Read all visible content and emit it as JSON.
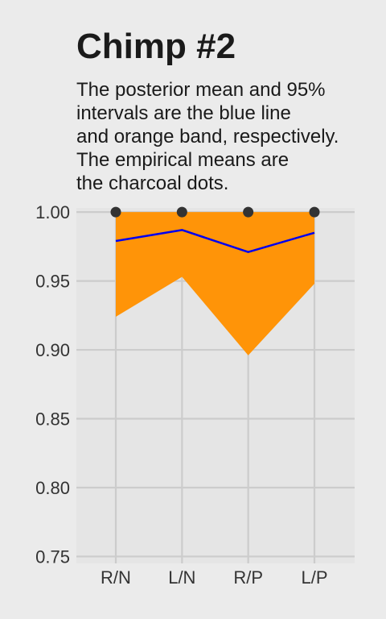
{
  "title": "Chimp #2",
  "subtitle_lines": [
    "The posterior mean and 95%",
    "intervals are the blue line",
    "and orange band, respectively.",
    "The empirical means are",
    "the charcoal dots."
  ],
  "colors": {
    "background": "#ebebeb",
    "panel": "#e5e5e5",
    "grid": "#cccccc",
    "band": "#ff9408",
    "mean_line": "#0000ee",
    "dots": "#333333"
  },
  "chart_data": {
    "type": "line",
    "title": "Chimp #2",
    "categories": [
      "R/N",
      "L/N",
      "R/P",
      "L/P"
    ],
    "series": [
      {
        "name": "posterior mean",
        "values": [
          0.979,
          0.987,
          0.971,
          0.985
        ]
      },
      {
        "name": "95% interval lower",
        "values": [
          0.924,
          0.953,
          0.896,
          0.948
        ]
      },
      {
        "name": "95% interval upper",
        "values": [
          1.0,
          1.0,
          1.0,
          1.0
        ]
      },
      {
        "name": "empirical mean",
        "values": [
          1.0,
          1.0,
          1.0,
          1.0
        ]
      }
    ],
    "y_ticks": [
      "1.00",
      "0.95",
      "0.90",
      "0.85",
      "0.80",
      "0.75"
    ],
    "ylim": [
      0.745,
      1.003
    ],
    "xlabel": "",
    "ylabel": "",
    "grid": true,
    "legend": "none"
  }
}
